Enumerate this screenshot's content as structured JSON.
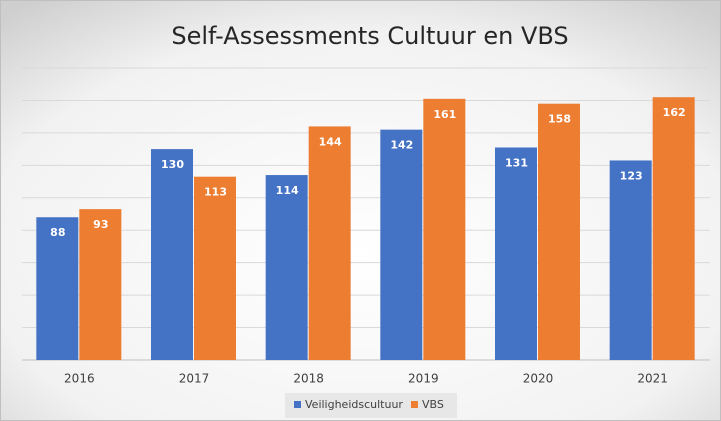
{
  "chart_data": {
    "type": "bar",
    "title": "Self-Assessments Cultuur en VBS",
    "categories": [
      "2016",
      "2017",
      "2018",
      "2019",
      "2020",
      "2021"
    ],
    "series": [
      {
        "name": "Veiligheidscultuur",
        "color": "#4472c4",
        "values": [
          88,
          130,
          114,
          142,
          131,
          123
        ]
      },
      {
        "name": "VBS",
        "color": "#ed7d31",
        "values": [
          93,
          113,
          144,
          161,
          158,
          162
        ]
      }
    ],
    "ylim": [
      0,
      180
    ],
    "yticks": [
      0,
      20,
      40,
      60,
      80,
      100,
      120,
      140,
      160,
      180
    ],
    "grid": true,
    "legend": "bottom"
  }
}
